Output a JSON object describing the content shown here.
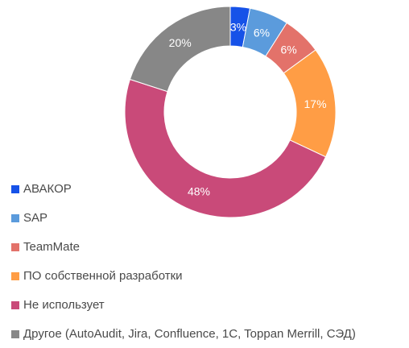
{
  "chart_data": {
    "type": "pie",
    "donut": true,
    "categories": [
      "АВАКОР",
      "SAP",
      "TeamMate",
      "ПО собственной разработки",
      "Не использует",
      "Другое (AutoAudit, Jira, Confluence, 1C, Toppan Merrill, СЭД)"
    ],
    "values": [
      3,
      6,
      6,
      17,
      48,
      20
    ],
    "value_labels": [
      "3%",
      "6%",
      "6%",
      "17%",
      "48%",
      "20%"
    ],
    "colors": [
      "#1652e8",
      "#5b9bdc",
      "#e3726a",
      "#ff9d45",
      "#c94a79",
      "#878787"
    ],
    "legend_position": "left-bottom",
    "start_angle": "12 o'clock, clockwise"
  }
}
